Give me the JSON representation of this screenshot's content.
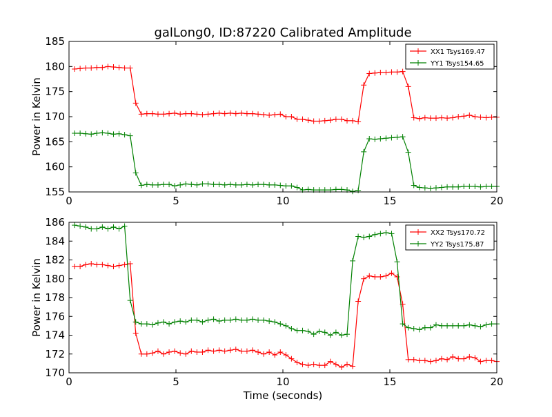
{
  "figure": {
    "title": "galLong0, ID:87220 Calibrated Amplitude",
    "xlabel": "Time (seconds)"
  },
  "colors": {
    "series_a": "#ff0000",
    "series_b": "#008000"
  },
  "chart_data": [
    {
      "type": "line",
      "ylabel": "Power in Kelvin",
      "xlim": [
        0,
        20
      ],
      "ylim": [
        155,
        185
      ],
      "xticks": [
        0,
        5,
        10,
        15,
        20
      ],
      "yticks": [
        155,
        160,
        165,
        170,
        175,
        180,
        185
      ],
      "legend_position": "top-right",
      "grid": false,
      "series": [
        {
          "name": "XX1 Tsys169.47",
          "color": "#ff0000",
          "x": [
            0.26,
            0.52,
            0.78,
            1.04,
            1.3,
            1.56,
            1.82,
            2.08,
            2.34,
            2.6,
            2.86,
            3.12,
            3.38,
            3.64,
            3.9,
            4.16,
            4.42,
            4.68,
            4.94,
            5.2,
            5.46,
            5.72,
            5.98,
            6.24,
            6.5,
            6.76,
            7.02,
            7.28,
            7.54,
            7.8,
            8.06,
            8.32,
            8.58,
            8.84,
            9.1,
            9.36,
            9.62,
            9.88,
            10.14,
            10.4,
            10.66,
            10.92,
            11.18,
            11.44,
            11.7,
            11.96,
            12.22,
            12.48,
            12.74,
            13.0,
            13.26,
            13.52,
            13.78,
            14.04,
            14.3,
            14.56,
            14.82,
            15.08,
            15.34,
            15.6,
            15.86,
            16.12,
            16.38,
            16.64,
            16.9,
            17.16,
            17.42,
            17.68,
            17.94,
            18.2,
            18.46,
            18.72,
            18.98,
            19.24,
            19.5,
            19.76,
            20.0
          ],
          "y": [
            179.5,
            179.6,
            179.7,
            179.7,
            179.8,
            179.8,
            180.0,
            179.9,
            179.8,
            179.7,
            179.7,
            172.7,
            170.5,
            170.6,
            170.6,
            170.5,
            170.5,
            170.6,
            170.7,
            170.5,
            170.6,
            170.6,
            170.5,
            170.4,
            170.5,
            170.6,
            170.7,
            170.6,
            170.7,
            170.6,
            170.7,
            170.6,
            170.6,
            170.5,
            170.4,
            170.3,
            170.4,
            170.5,
            170.0,
            170.0,
            169.5,
            169.5,
            169.3,
            169.1,
            169.1,
            169.2,
            169.3,
            169.5,
            169.5,
            169.2,
            169.2,
            169.0,
            176.3,
            178.6,
            178.7,
            178.8,
            178.8,
            178.9,
            178.9,
            179.0,
            176.0,
            169.8,
            169.6,
            169.8,
            169.7,
            169.7,
            169.8,
            169.7,
            169.8,
            170.0,
            170.1,
            170.3,
            170.0,
            169.9,
            169.8,
            169.9,
            169.9
          ]
        },
        {
          "name": "YY1 Tsys154.65",
          "color": "#008000",
          "x": [
            0.26,
            0.52,
            0.78,
            1.04,
            1.3,
            1.56,
            1.82,
            2.08,
            2.34,
            2.6,
            2.86,
            3.12,
            3.38,
            3.64,
            3.9,
            4.16,
            4.42,
            4.68,
            4.94,
            5.2,
            5.46,
            5.72,
            5.98,
            6.24,
            6.5,
            6.76,
            7.02,
            7.28,
            7.54,
            7.8,
            8.06,
            8.32,
            8.58,
            8.84,
            9.1,
            9.36,
            9.62,
            9.88,
            10.14,
            10.4,
            10.66,
            10.92,
            11.18,
            11.44,
            11.7,
            11.96,
            12.22,
            12.48,
            12.74,
            13.0,
            13.26,
            13.52,
            13.78,
            14.04,
            14.3,
            14.56,
            14.82,
            15.08,
            15.34,
            15.6,
            15.86,
            16.12,
            16.38,
            16.64,
            16.9,
            17.16,
            17.42,
            17.68,
            17.94,
            18.2,
            18.46,
            18.72,
            18.98,
            19.24,
            19.5,
            19.76,
            20.0
          ],
          "y": [
            166.7,
            166.7,
            166.6,
            166.5,
            166.7,
            166.8,
            166.7,
            166.5,
            166.6,
            166.4,
            166.2,
            158.8,
            156.3,
            156.5,
            156.4,
            156.4,
            156.5,
            156.5,
            156.2,
            156.4,
            156.6,
            156.5,
            156.4,
            156.6,
            156.6,
            156.5,
            156.5,
            156.4,
            156.5,
            156.4,
            156.4,
            156.5,
            156.4,
            156.5,
            156.5,
            156.4,
            156.4,
            156.3,
            156.2,
            156.2,
            155.9,
            155.4,
            155.5,
            155.4,
            155.4,
            155.4,
            155.4,
            155.5,
            155.5,
            155.4,
            155.1,
            155.3,
            163.0,
            165.6,
            165.5,
            165.6,
            165.7,
            165.8,
            165.9,
            166.0,
            162.9,
            156.3,
            155.9,
            155.8,
            155.7,
            155.8,
            155.9,
            156.0,
            156.0,
            156.0,
            156.1,
            156.1,
            156.1,
            156.0,
            156.1,
            156.1,
            156.1
          ]
        }
      ]
    },
    {
      "type": "line",
      "ylabel": "Power in Kelvin",
      "xlabel": "Time (seconds)",
      "xlim": [
        0,
        20
      ],
      "ylim": [
        170,
        186
      ],
      "xticks": [
        0,
        5,
        10,
        15,
        20
      ],
      "yticks": [
        170,
        172,
        174,
        176,
        178,
        180,
        182,
        184,
        186
      ],
      "legend_position": "top-right",
      "grid": false,
      "series": [
        {
          "name": "XX2 Tsys170.72",
          "color": "#ff0000",
          "x": [
            0.26,
            0.52,
            0.78,
            1.04,
            1.3,
            1.56,
            1.82,
            2.08,
            2.34,
            2.6,
            2.86,
            3.12,
            3.38,
            3.64,
            3.9,
            4.16,
            4.42,
            4.68,
            4.94,
            5.2,
            5.46,
            5.72,
            5.98,
            6.24,
            6.5,
            6.76,
            7.02,
            7.28,
            7.54,
            7.8,
            8.06,
            8.32,
            8.58,
            8.84,
            9.1,
            9.36,
            9.62,
            9.88,
            10.14,
            10.4,
            10.66,
            10.92,
            11.18,
            11.44,
            11.7,
            11.96,
            12.22,
            12.48,
            12.74,
            13.0,
            13.26,
            13.52,
            13.78,
            14.04,
            14.3,
            14.56,
            14.82,
            15.08,
            15.34,
            15.6,
            15.86,
            16.12,
            16.38,
            16.64,
            16.9,
            17.16,
            17.42,
            17.68,
            17.94,
            18.2,
            18.46,
            18.72,
            18.98,
            19.24,
            19.5,
            19.76,
            20.0
          ],
          "y": [
            181.3,
            181.3,
            181.5,
            181.6,
            181.5,
            181.5,
            181.4,
            181.3,
            181.4,
            181.5,
            181.6,
            174.2,
            172.0,
            172.0,
            172.1,
            172.3,
            172.0,
            172.2,
            172.3,
            172.1,
            172.0,
            172.3,
            172.2,
            172.2,
            172.4,
            172.3,
            172.4,
            172.3,
            172.4,
            172.5,
            172.3,
            172.3,
            172.4,
            172.2,
            172.0,
            172.2,
            171.9,
            172.2,
            171.9,
            171.5,
            171.1,
            170.9,
            170.8,
            170.9,
            170.8,
            170.8,
            171.2,
            170.9,
            170.6,
            170.9,
            170.7,
            177.6,
            180.0,
            180.3,
            180.2,
            180.2,
            180.3,
            180.6,
            180.2,
            177.3,
            171.4,
            171.4,
            171.3,
            171.3,
            171.2,
            171.3,
            171.5,
            171.4,
            171.7,
            171.5,
            171.5,
            171.7,
            171.6,
            171.2,
            171.3,
            171.3,
            171.2
          ],
          "x_note": ""
        },
        {
          "name": "YY2 Tsys175.87",
          "color": "#008000",
          "x": [
            0.26,
            0.52,
            0.78,
            1.04,
            1.3,
            1.56,
            1.82,
            2.08,
            2.34,
            2.6,
            2.86,
            3.12,
            3.38,
            3.64,
            3.9,
            4.16,
            4.42,
            4.68,
            4.94,
            5.2,
            5.46,
            5.72,
            5.98,
            6.24,
            6.5,
            6.76,
            7.02,
            7.28,
            7.54,
            7.8,
            8.06,
            8.32,
            8.58,
            8.84,
            9.1,
            9.36,
            9.62,
            9.88,
            10.14,
            10.4,
            10.66,
            10.92,
            11.18,
            11.44,
            11.7,
            11.96,
            12.22,
            12.48,
            12.74,
            13.0,
            13.26,
            13.52,
            13.78,
            14.04,
            14.3,
            14.56,
            14.82,
            15.08,
            15.34,
            15.6,
            15.86,
            16.12,
            16.38,
            16.64,
            16.9,
            17.16,
            17.42,
            17.68,
            17.94,
            18.2,
            18.46,
            18.72,
            18.98,
            19.24,
            19.5,
            19.76,
            20.0
          ],
          "y": [
            185.7,
            185.6,
            185.5,
            185.3,
            185.3,
            185.5,
            185.3,
            185.5,
            185.3,
            185.6,
            177.7,
            175.4,
            175.2,
            175.2,
            175.1,
            175.3,
            175.4,
            175.2,
            175.4,
            175.5,
            175.4,
            175.6,
            175.6,
            175.4,
            175.6,
            175.7,
            175.5,
            175.6,
            175.6,
            175.7,
            175.6,
            175.6,
            175.7,
            175.6,
            175.6,
            175.5,
            175.4,
            175.2,
            175.0,
            174.7,
            174.5,
            174.5,
            174.4,
            174.1,
            174.4,
            174.3,
            174.0,
            174.3,
            174.0,
            174.1,
            181.9,
            184.5,
            184.4,
            184.5,
            184.7,
            184.8,
            184.9,
            184.8,
            181.8,
            175.2,
            174.8,
            174.7,
            174.6,
            174.8,
            174.8,
            175.1,
            175.0,
            175.0,
            175.0,
            175.0,
            175.0,
            175.1,
            175.0,
            174.9,
            175.1,
            175.2,
            175.2
          ]
        }
      ]
    }
  ]
}
